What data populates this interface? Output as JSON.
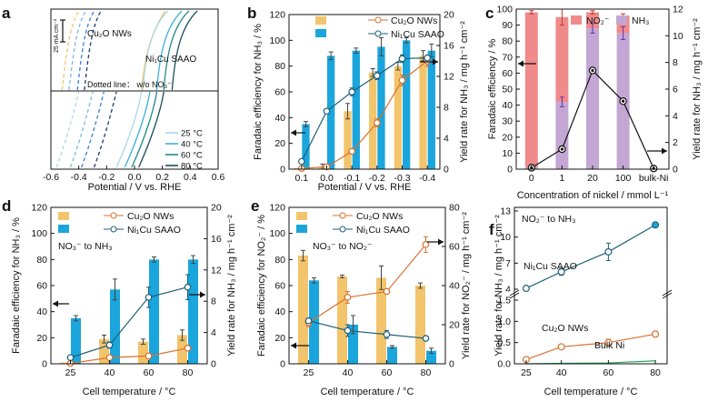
{
  "colors": {
    "cu2o": "#f2c46b",
    "cu2o_line": "#d9712f",
    "ni": "#1aa5dc",
    "ni_line": "#1d5f78",
    "no2": "#f08b8b",
    "nh3": "#c3a6d3",
    "bulk": "#27a85a",
    "dash1": "#79b8e6",
    "grey": "#888888"
  },
  "chart_data": [
    {
      "panel": "a",
      "type": "line",
      "xlabel": "Potential  / V vs. RHE",
      "xlim": [
        -0.6,
        0.6
      ],
      "xticks": [
        "-0.6",
        "-0.4",
        "-0.2",
        "0.0",
        "0.2",
        "0.4",
        "0.6"
      ],
      "xtick_values": [
        -0.6,
        -0.4,
        -0.2,
        0.0,
        0.2,
        0.4,
        0.6
      ],
      "scale_bar_label": "25 mA cm⁻²",
      "label_cu2o": "Cu₂O NWs",
      "label_ni": "Ni₁Cu SAAO",
      "label_dotted": "Dotted line： w/o NO₃⁻",
      "temps": [
        "25 °C",
        "40 °C",
        "60 °C",
        "80 °C"
      ],
      "solid_onset_top": [
        0.06,
        0.16,
        0.21,
        0.27
      ],
      "solid_onset_bottom": [
        0.05,
        0.11,
        0.16,
        0.21
      ],
      "dash_onset_top": [
        -0.52,
        -0.47,
        -0.41,
        -0.36
      ],
      "dash_onset_bottom": [
        -0.4,
        -0.3,
        -0.22,
        -0.13
      ]
    },
    {
      "panel": "b",
      "type": "bar",
      "title": "",
      "ylabel": "Faradaic efficiency for NH₃ / %",
      "ylabel2": "Yield rate for NH₃ / mg h⁻¹ cm⁻²",
      "xlabel": "Potential  / V vs. RHE",
      "categories": [
        "0.1",
        "0.0",
        "-0.1",
        "-0.2",
        "-0.3",
        "-0.4"
      ],
      "ylim": [
        0,
        120
      ],
      "y2lim": [
        0,
        20
      ],
      "yticks": [
        "0",
        "20",
        "40",
        "60",
        "80",
        "100",
        "120"
      ],
      "y2ticks": [
        "0",
        "4",
        "8",
        "12",
        "16",
        "20"
      ],
      "series": [
        {
          "name": "Cu₂O NWs",
          "fe": [
            1,
            2,
            45,
            75,
            80,
            88
          ],
          "fe_err": [
            0,
            2,
            6,
            3,
            3,
            4
          ],
          "yield": [
            0.1,
            0.3,
            2.3,
            6.0,
            11.5,
            14.0
          ],
          "yield_err": [
            0,
            0.2,
            0.3,
            0.5,
            0.7,
            0.7
          ]
        },
        {
          "name": "Ni₁Cu SAAO",
          "fe": [
            35,
            88,
            92,
            95,
            100,
            92
          ],
          "fe_err": [
            2,
            3,
            2,
            7,
            2,
            5
          ],
          "yield": [
            1.0,
            7.5,
            10.0,
            12.1,
            14.3,
            14.4
          ],
          "yield_err": [
            0,
            0.3,
            0.5,
            0.5,
            0.5,
            0.3
          ]
        }
      ]
    },
    {
      "panel": "c",
      "type": "bar",
      "ylabel": "Faradaic  efficiency / %",
      "ylabel2": "Yield rate for NH₃ / mg h⁻¹ cm⁻²",
      "xlabel": "Concentration of nickel / mmol L⁻¹",
      "categories": [
        "0",
        "1",
        "20",
        "100",
        "bulk-Ni"
      ],
      "ylim": [
        0,
        100
      ],
      "y2lim": [
        0,
        12
      ],
      "yticks": [
        "0",
        "10",
        "20",
        "30",
        "40",
        "50",
        "60",
        "70",
        "80",
        "90",
        "100"
      ],
      "y2ticks": [
        "0",
        "2",
        "4",
        "6",
        "8",
        "10",
        "12"
      ],
      "legend": [
        "NO₂⁻",
        "NH₃"
      ],
      "nh3_fe": [
        1,
        42,
        88,
        85,
        null
      ],
      "nh3_err": [
        2,
        3,
        3,
        4,
        null
      ],
      "no2_fe": [
        98,
        95,
        98,
        96,
        null
      ],
      "no2_err": [
        1,
        5,
        1,
        1,
        null
      ],
      "yield": [
        0.1,
        1.5,
        7.4,
        5.1,
        0.05
      ]
    },
    {
      "panel": "d",
      "type": "bar",
      "ylabel": "Faradaic efficiency for NH₃ / %",
      "ylabel2": "Yield rate for NH₃ / mg h⁻¹ cm⁻²",
      "xlabel": "Cell temperature / °C",
      "annotation": "NO₃⁻ to NH₃",
      "categories": [
        "25",
        "40",
        "60",
        "80"
      ],
      "ylim": [
        0,
        120
      ],
      "y2lim": [
        0,
        20
      ],
      "yticks": [
        "0",
        "20",
        "40",
        "60",
        "80",
        "100",
        "120"
      ],
      "y2ticks": [
        "0",
        "4",
        "8",
        "12",
        "16",
        "20"
      ],
      "series": [
        {
          "name": "Cu₂O NWs",
          "fe": [
            1,
            19,
            17,
            22
          ],
          "fe_err": [
            0,
            3,
            2,
            4
          ],
          "yield": [
            0.05,
            0.8,
            1.0,
            2.0
          ],
          "yield_err": [
            0,
            0.2,
            0.3,
            0.3
          ]
        },
        {
          "name": "Ni₁Cu SAAO",
          "fe": [
            35,
            57,
            80,
            80
          ],
          "fe_err": [
            2,
            8,
            2,
            3
          ],
          "yield": [
            0.8,
            2.4,
            8.5,
            9.8
          ],
          "yield_err": [
            0.1,
            0.4,
            1.3,
            1.6
          ]
        }
      ]
    },
    {
      "panel": "e",
      "type": "bar",
      "ylabel": "Faradaic efficiency for NO₂⁻ / %",
      "ylabel2": "Yield rate for NO₂⁻ / mg h⁻¹ cm⁻²",
      "xlabel": "Cell temperature / °C",
      "annotation": "NO₃⁻ to NO₂⁻",
      "categories": [
        "25",
        "40",
        "60",
        "80"
      ],
      "ylim": [
        0,
        120
      ],
      "y2lim": [
        0,
        80
      ],
      "yticks": [
        "0",
        "20",
        "40",
        "60",
        "80",
        "100",
        "120"
      ],
      "y2ticks": [
        "0",
        "20",
        "40",
        "60",
        "80"
      ],
      "series": [
        {
          "name": "Cu₂O NWs",
          "fe": [
            83,
            67,
            66,
            60
          ],
          "fe_err": [
            4,
            1,
            9,
            2
          ],
          "yield": [
            21,
            34,
            37,
            61
          ],
          "yield_err": [
            2,
            3,
            1,
            4
          ]
        },
        {
          "name": "Ni₁Cu SAAO",
          "fe": [
            64,
            30,
            13,
            10
          ],
          "fe_err": [
            2,
            7,
            1,
            2
          ],
          "yield": [
            22,
            17,
            15,
            13
          ],
          "yield_err": [
            1,
            3,
            2,
            1
          ]
        }
      ]
    },
    {
      "panel": "f",
      "type": "line",
      "ylabel": "Yield rate for NH₃ / mg h⁻¹ cm⁻²",
      "xlabel": "Cell temperature / °C",
      "annotation": "NO₂⁻ to NH₃",
      "categories": [
        "25",
        "40",
        "60",
        "80"
      ],
      "yticks_top": [
        "4",
        "7",
        "10",
        "13"
      ],
      "yticks_bottom": [
        "0.0",
        "0.5",
        "1.0",
        "1.5"
      ],
      "series": [
        {
          "name": "Ni₁Cu SAAO",
          "values": [
            4.1,
            6.0,
            8.3,
            11.4
          ],
          "err": [
            0.2,
            0.4,
            1.0,
            0.1
          ]
        },
        {
          "name": "Cu₂O NWs",
          "values": [
            0.1,
            0.4,
            0.5,
            0.7
          ],
          "err": [
            0.03,
            0.03,
            0.08,
            0.07
          ]
        },
        {
          "name": "Bulk Ni",
          "values": [
            0.0,
            0.01,
            0.02,
            0.07
          ],
          "err": [
            0,
            0,
            0,
            0
          ]
        }
      ]
    }
  ]
}
